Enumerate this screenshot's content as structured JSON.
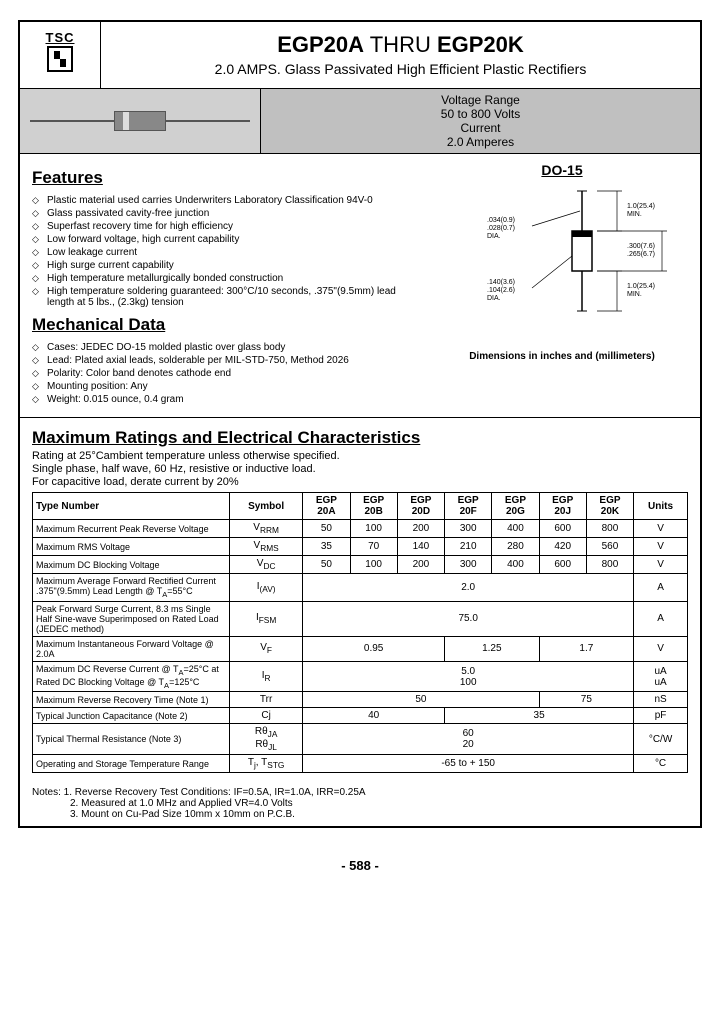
{
  "logo": {
    "text": "TSC",
    "symbol": "卐"
  },
  "title": {
    "prefix": "EGP20A",
    "mid": " THRU ",
    "suffix": "EGP20K",
    "sub": "2.0 AMPS. Glass Passivated High Efficient Plastic Rectifiers"
  },
  "voltage_box": {
    "l1": "Voltage Range",
    "l2": "50 to 800 Volts",
    "l3": "Current",
    "l4": "2.0 Amperes"
  },
  "package": "DO-15",
  "features_head": "Features",
  "features": [
    "Plastic material used carries Underwriters Laboratory Classification 94V-0",
    "Glass passivated cavity-free junction",
    "Superfast recovery time for high efficiency",
    "Low forward voltage, high current capability",
    "Low leakage current",
    "High surge current capability",
    "High temperature metallurgically bonded construction",
    "High temperature soldering guaranteed: 300°C/10 seconds, .375\"(9.5mm) lead length at 5 lbs., (2.3kg) tension"
  ],
  "mech_head": "Mechanical Data",
  "mech": [
    "Cases: JEDEC DO-15 molded plastic over glass body",
    "Lead: Plated axial leads, solderable per MIL-STD-750, Method 2026",
    "Polarity: Color band denotes cathode end",
    "Mounting position: Any",
    "Weight: 0.015 ounce, 0.4 gram"
  ],
  "dim_labels": {
    "lead_dia": ".034(0.9)\n.028(0.7)\nDIA.",
    "lead_len": "1.0(25.4)\nMIN.",
    "body_dia": ".140(3.6)\n.104(2.6)\nDIA.",
    "body_len": ".300(7.6)\n.265(6.7)",
    "lead_len2": "1.0(25.4)\nMIN."
  },
  "dim_caption": "Dimensions in inches and (millimeters)",
  "ratings_head": "Maximum Ratings and Electrical Characteristics",
  "ratings_notes": [
    "Rating at 25°Cambient temperature unless otherwise specified.",
    "Single phase, half wave, 60 Hz, resistive or inductive load.",
    "For capacitive load, derate current by 20%"
  ],
  "table": {
    "headers": [
      "Type Number",
      "Symbol",
      "EGP 20A",
      "EGP 20B",
      "EGP 20D",
      "EGP 20F",
      "EGP 20G",
      "EGP 20J",
      "EGP 20K",
      "Units"
    ],
    "rows": [
      {
        "lbl": "Maximum Recurrent Peak Reverse Voltage",
        "sym": "V<sub>RRM</sub>",
        "cells": [
          "50",
          "100",
          "200",
          "300",
          "400",
          "600",
          "800"
        ],
        "unit": "V"
      },
      {
        "lbl": "Maximum RMS Voltage",
        "sym": "V<sub>RMS</sub>",
        "cells": [
          "35",
          "70",
          "140",
          "210",
          "280",
          "420",
          "560"
        ],
        "unit": "V"
      },
      {
        "lbl": "Maximum DC Blocking Voltage",
        "sym": "V<sub>DC</sub>",
        "cells": [
          "50",
          "100",
          "200",
          "300",
          "400",
          "600",
          "800"
        ],
        "unit": "V"
      },
      {
        "lbl": "Maximum Average Forward Rectified Current .375\"(9.5mm) Lead Length @ T<sub>A</sub>=55°C",
        "sym": "I<sub>(AV)</sub>",
        "span": "2.0",
        "unit": "A"
      },
      {
        "lbl": "Peak Forward Surge Current, 8.3 ms Single Half Sine-wave Superimposed on Rated Load (JEDEC method)",
        "sym": "I<sub>FSM</sub>",
        "span": "75.0",
        "unit": "A"
      },
      {
        "lbl": "Maximum Instantaneous Forward Voltage @ 2.0A",
        "sym": "V<sub>F</sub>",
        "spans": [
          {
            "c": 3,
            "v": "0.95"
          },
          {
            "c": 2,
            "v": "1.25"
          },
          {
            "c": 2,
            "v": "1.7"
          }
        ],
        "unit": "V"
      },
      {
        "lbl": "Maximum DC Reverse Current @ T<sub>A</sub>=25°C at Rated DC Blocking Voltage @ T<sub>A</sub>=125°C",
        "sym": "I<sub>R</sub>",
        "span2": [
          "5.0",
          "100"
        ],
        "unit": "uA<br>uA"
      },
      {
        "lbl": "Maximum Reverse Recovery Time (Note 1)",
        "sym": "Trr",
        "spans": [
          {
            "c": 5,
            "v": "50"
          },
          {
            "c": 2,
            "v": "75"
          }
        ],
        "unit": "nS"
      },
      {
        "lbl": "Typical Junction Capacitance (Note 2)",
        "sym": "Cj",
        "spans": [
          {
            "c": 3,
            "v": "40"
          },
          {
            "c": 4,
            "v": "35"
          }
        ],
        "unit": "pF"
      },
      {
        "lbl": "Typical Thermal Resistance (Note 3)",
        "sym": "Rθ<sub>JA</sub><br>Rθ<sub>JL</sub>",
        "span2": [
          "60",
          "20"
        ],
        "unit": "°C/W"
      },
      {
        "lbl": "Operating and Storage Temperature Range",
        "sym": "T<sub>j</sub>, T<sub>STG</sub>",
        "span": "-65 to + 150",
        "unit": "°C"
      }
    ]
  },
  "footnotes": [
    "Notes: 1. Reverse Recovery Test Conditions: IF=0.5A, IR=1.0A, IRR=0.25A",
    "2. Measured at 1.0 MHz and Applied VR=4.0 Volts",
    "3. Mount on Cu-Pad Size 10mm x 10mm on P.C.B."
  ],
  "page_num": "- 588 -",
  "colors": {
    "gray_bg": "#c0c0c0",
    "diode_gray": "#d0d0d0"
  }
}
